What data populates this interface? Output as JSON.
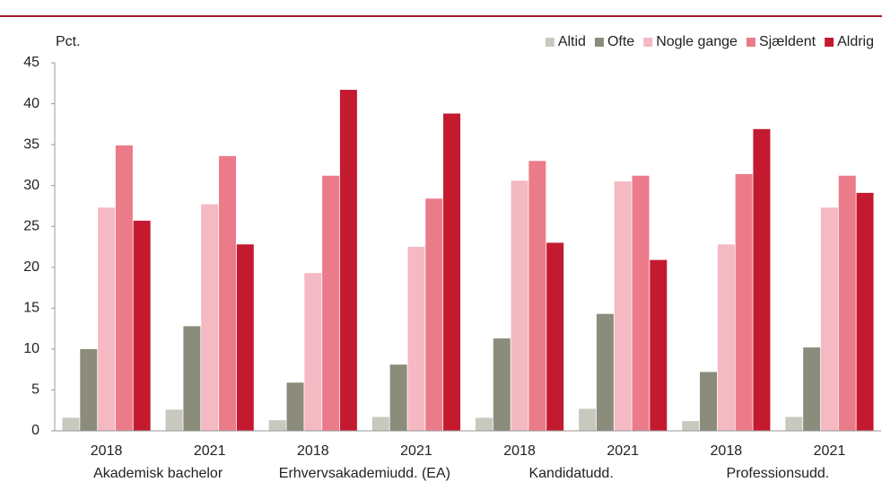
{
  "chart_data": {
    "type": "bar",
    "y_label": "Pct.",
    "categories": [
      "2018",
      "2021",
      "2018",
      "2021",
      "2018",
      "2021",
      "2018",
      "2021"
    ],
    "groups": [
      "Akademisk bachelor",
      "Erhvervsakademiudd. (EA)",
      "Kandidatudd.",
      "Professionsudd."
    ],
    "series": [
      {
        "name": "Altid",
        "color": "#c8c8be",
        "values": [
          1.6,
          2.6,
          1.3,
          1.7,
          1.6,
          2.7,
          1.2,
          1.7
        ]
      },
      {
        "name": "Ofte",
        "color": "#8c8c7c",
        "values": [
          10.0,
          12.8,
          5.9,
          8.1,
          11.3,
          14.3,
          7.2,
          10.2
        ]
      },
      {
        "name": "Nogle gange",
        "color": "#f4b9c2",
        "values": [
          27.3,
          27.7,
          19.3,
          22.5,
          30.6,
          30.5,
          22.8,
          27.3
        ]
      },
      {
        "name": "Sjældent",
        "color": "#ec7b8a",
        "values": [
          34.9,
          33.6,
          31.2,
          28.4,
          33.0,
          31.2,
          31.4,
          31.2
        ]
      },
      {
        "name": "Aldrig",
        "color": "#c41a30",
        "values": [
          25.7,
          22.8,
          41.7,
          38.8,
          23.0,
          20.9,
          36.9,
          29.1
        ]
      }
    ],
    "ylim": [
      0,
      45
    ],
    "yticks": [
      0,
      5,
      10,
      15,
      20,
      25,
      30,
      35,
      40,
      45
    ],
    "grid": false,
    "legend": "top-right"
  }
}
